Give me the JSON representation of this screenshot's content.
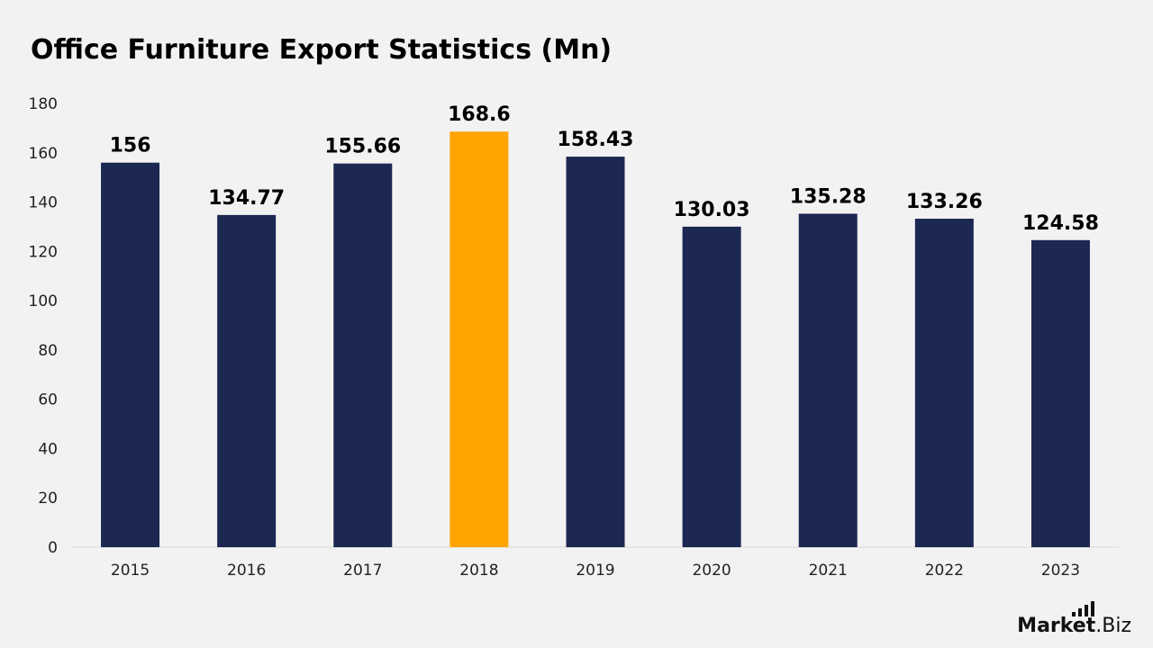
{
  "chart_data": {
    "type": "bar",
    "title": "Office Furniture Export Statistics (Mn)",
    "xlabel": "",
    "ylabel": "",
    "categories": [
      "2015",
      "2016",
      "2017",
      "2018",
      "2019",
      "2020",
      "2021",
      "2022",
      "2023"
    ],
    "values": [
      156,
      134.77,
      155.66,
      168.6,
      158.43,
      130.03,
      135.28,
      133.26,
      124.58
    ],
    "value_labels": [
      "156",
      "134.77",
      "155.66",
      "168.6",
      "158.43",
      "130.03",
      "135.28",
      "133.26",
      "124.58"
    ],
    "ylim": [
      0,
      180
    ],
    "y_ticks": [
      0,
      20,
      40,
      60,
      80,
      100,
      120,
      140,
      160,
      180
    ],
    "grid": false,
    "legend": "none",
    "bar_color": "#1c2752",
    "highlight_color": "#ffa400",
    "highlight_category": "2018"
  },
  "brand": {
    "main": "Market",
    "sub": ".Biz",
    "icon": "bar-signal-icon"
  }
}
